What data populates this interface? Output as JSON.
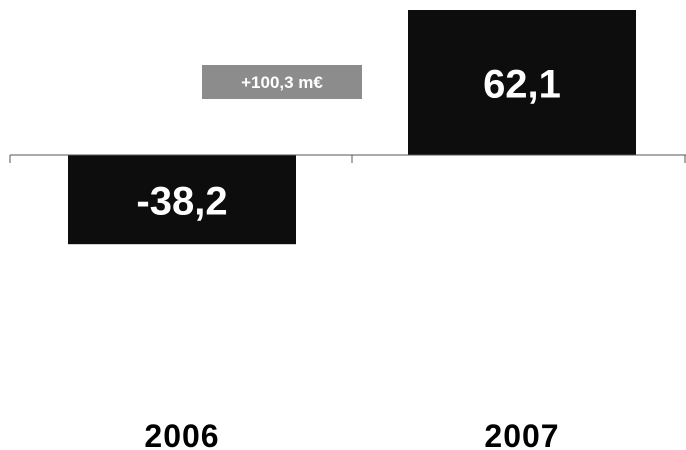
{
  "chart_data": {
    "type": "bar",
    "categories": [
      "2006",
      "2007"
    ],
    "values": [
      -38.2,
      62.1
    ],
    "value_labels": [
      "-38,2",
      "62,1"
    ],
    "annotation": "+100,3 m€",
    "title": "",
    "xlabel": "",
    "ylabel": "",
    "ylim": [
      -38.2,
      62.1
    ],
    "grid": false,
    "legend": "none"
  },
  "colors": {
    "bar": "#0d0d0d",
    "annotation_box": "#8c8c8c",
    "axis": "#555555",
    "value_text": "#ffffff",
    "category_text": "#000000"
  }
}
